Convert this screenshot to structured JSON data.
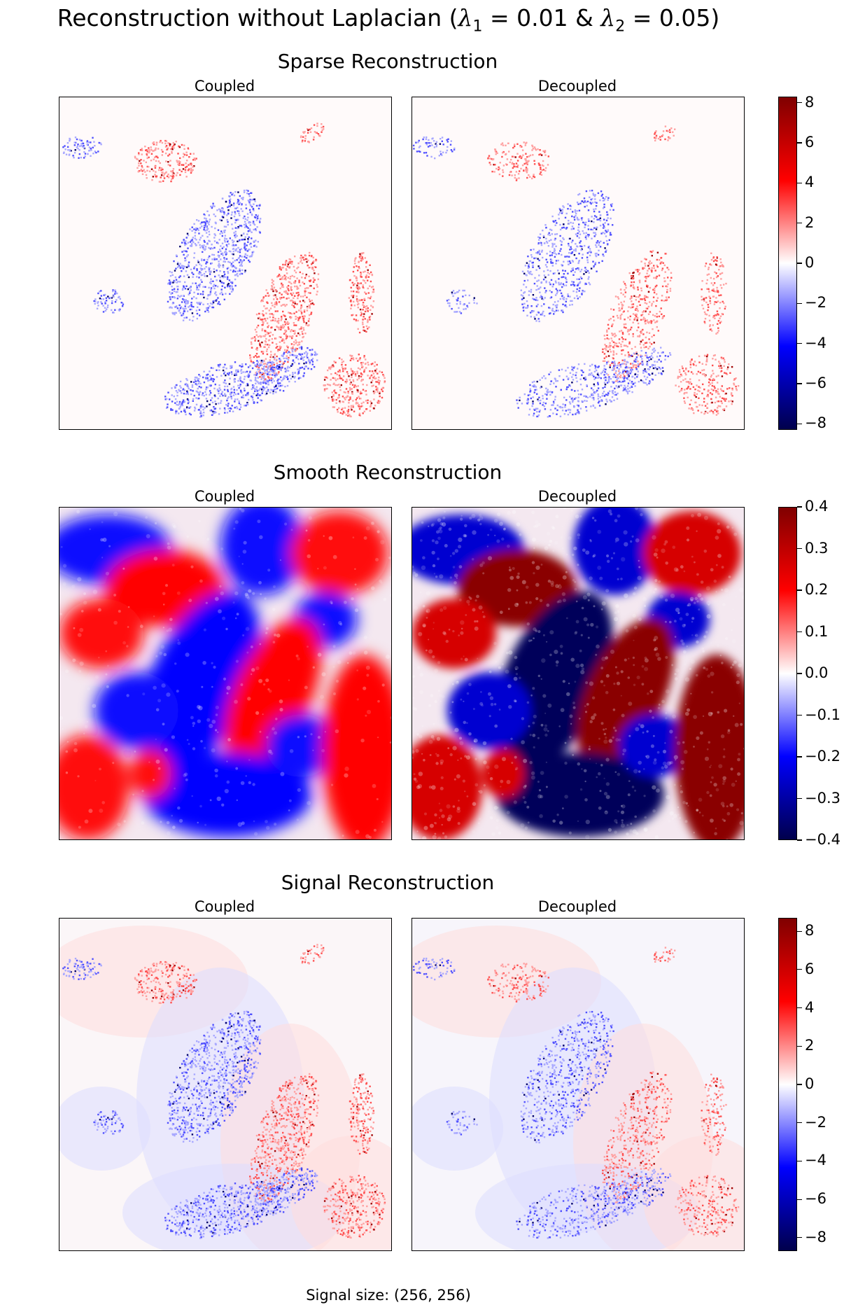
{
  "figure": {
    "title_prefix": "Reconstruction without Laplacian (",
    "title_lambda_sym": "λ",
    "title_sub1": "1",
    "title_mid1": " = 0.01 & ",
    "title_sub2": "2",
    "title_mid2": " = 0.05)",
    "footer": "Signal size: (256, 256)"
  },
  "chart_data": [
    {
      "type": "heatmap",
      "title": "Sparse Reconstruction",
      "colormap": "seismic",
      "panels": [
        {
          "title": "Coupled",
          "style": "sparse"
        },
        {
          "title": "Decoupled",
          "style": "sparse"
        }
      ],
      "colorbar": {
        "vmin": -8.3,
        "vmax": 8.3,
        "ticks": [
          8,
          6,
          4,
          2,
          0,
          -2,
          -4,
          -6,
          -8
        ],
        "tick_labels": [
          "8",
          "6",
          "4",
          "2",
          "0",
          "−2",
          "−4",
          "−6",
          "−8"
        ]
      }
    },
    {
      "type": "heatmap",
      "title": "Smooth Reconstruction",
      "colormap": "seismic",
      "panels": [
        {
          "title": "Coupled",
          "style": "smooth"
        },
        {
          "title": "Decoupled",
          "style": "smooth"
        }
      ],
      "colorbar": {
        "vmin": -0.4,
        "vmax": 0.4,
        "ticks": [
          0.4,
          0.3,
          0.2,
          0.1,
          0.0,
          -0.1,
          -0.2,
          -0.3,
          -0.4
        ],
        "tick_labels": [
          "0.4",
          "0.3",
          "0.2",
          "0.1",
          "0.0",
          "−0.1",
          "−0.2",
          "−0.3",
          "−0.4"
        ]
      }
    },
    {
      "type": "heatmap",
      "title": "Signal Reconstruction",
      "colormap": "seismic",
      "panels": [
        {
          "title": "Coupled",
          "style": "signal"
        },
        {
          "title": "Decoupled",
          "style": "signal"
        }
      ],
      "colorbar": {
        "vmin": -8.7,
        "vmax": 8.7,
        "ticks": [
          8,
          6,
          4,
          2,
          0,
          -2,
          -4,
          -6,
          -8
        ],
        "tick_labels": [
          "8",
          "6",
          "4",
          "2",
          "0",
          "−2",
          "−4",
          "−6",
          "−8"
        ]
      }
    }
  ],
  "colors": {
    "dark_blue": "#00004c",
    "blue": "#0000ff",
    "white": "#ffffff",
    "red": "#ff0000",
    "dark_red": "#800000"
  }
}
